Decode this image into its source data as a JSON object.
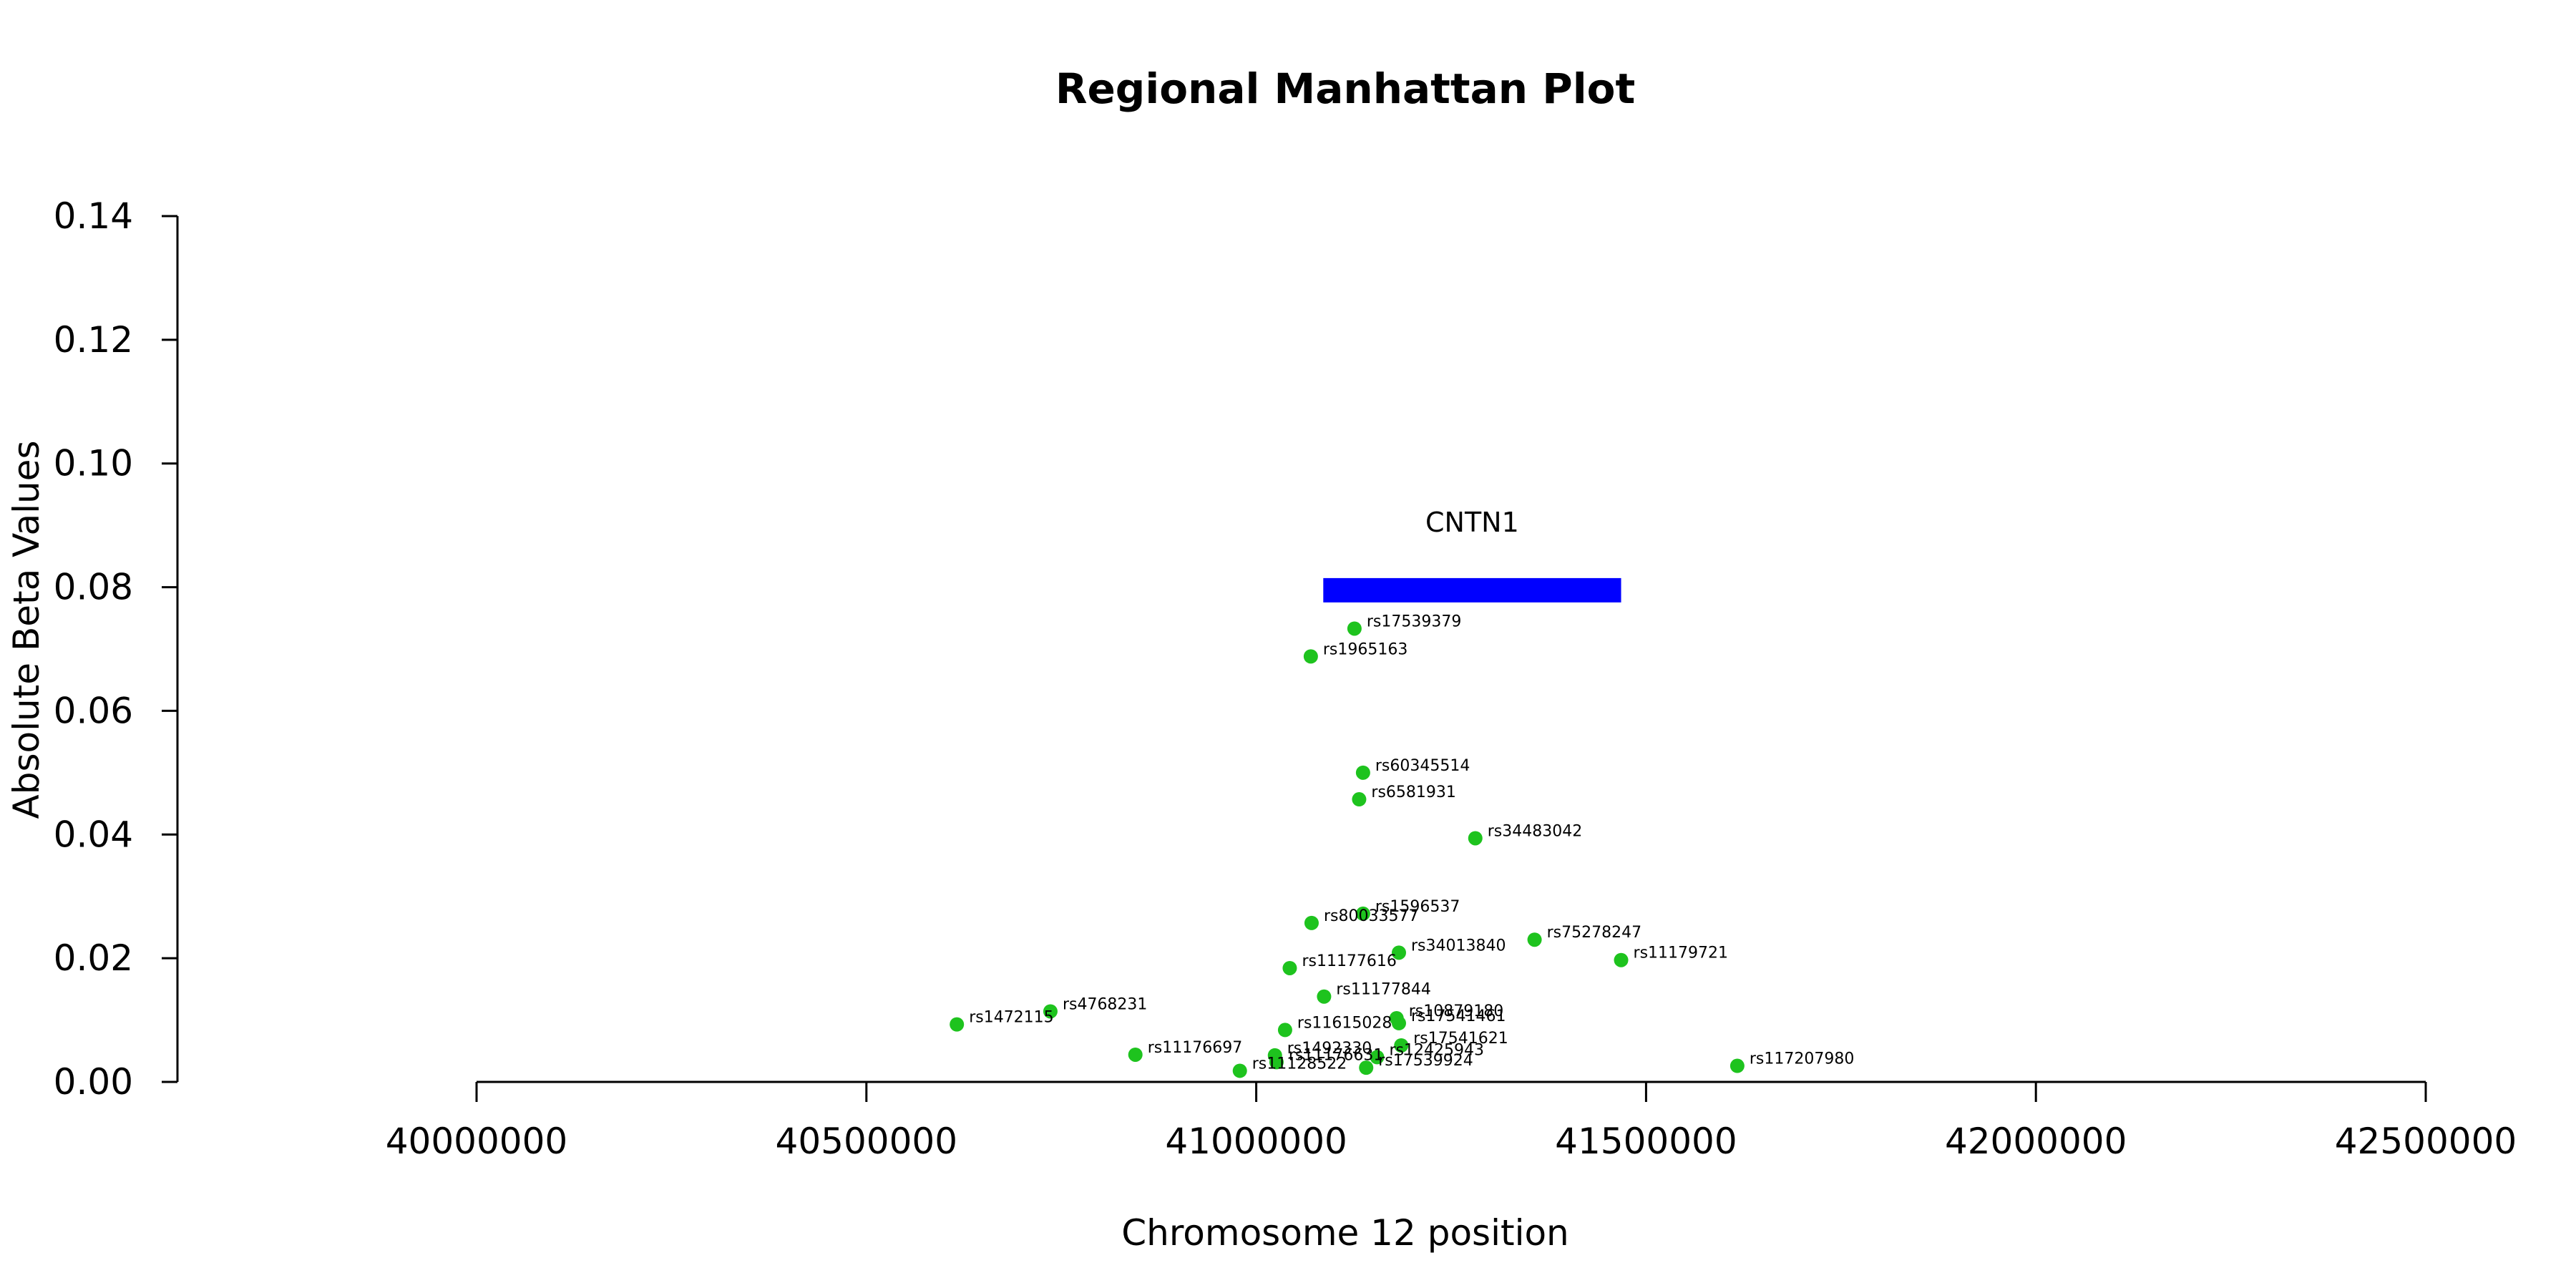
{
  "chart_data": {
    "type": "scatter",
    "title": "Regional Manhattan Plot",
    "xlabel": "Chromosome 12 position",
    "ylabel": "Absolute Beta Values",
    "xlim": [
      40000000,
      42500000
    ],
    "ylim": [
      0,
      0.14
    ],
    "xticks": [
      "40000000",
      "40500000",
      "41000000",
      "41500000",
      "42000000",
      "42500000"
    ],
    "yticks": [
      "0.00",
      "0.02",
      "0.04",
      "0.06",
      "0.08",
      "0.10",
      "0.12",
      "0.14"
    ],
    "point_color": "#1ec31e",
    "gene_color": "#0000ff",
    "gene": {
      "name": "CNTN1",
      "start": 41086000,
      "end": 41468000,
      "y": 0.0795
    },
    "points": [
      {
        "label": "rs17539379",
        "x": 41126000,
        "y": 0.0733
      },
      {
        "label": "rs1965163",
        "x": 41070000,
        "y": 0.0688
      },
      {
        "label": "rs60345514",
        "x": 41137000,
        "y": 0.05
      },
      {
        "label": "rs6581931",
        "x": 41132000,
        "y": 0.0457
      },
      {
        "label": "rs34483042",
        "x": 41281000,
        "y": 0.0394
      },
      {
        "label": "rs1596537",
        "x": 41137000,
        "y": 0.0272
      },
      {
        "label": "rs80033577",
        "x": 41071000,
        "y": 0.0257
      },
      {
        "label": "rs75278247",
        "x": 41357000,
        "y": 0.023
      },
      {
        "label": "rs34013840",
        "x": 41183000,
        "y": 0.0209
      },
      {
        "label": "rs11179721",
        "x": 41468000,
        "y": 0.0197
      },
      {
        "label": "rs11177616",
        "x": 41043000,
        "y": 0.0184
      },
      {
        "label": "rs11177844",
        "x": 41087000,
        "y": 0.0138
      },
      {
        "label": "rs4768231",
        "x": 40736000,
        "y": 0.0114
      },
      {
        "label": "rs10879180",
        "x": 41180000,
        "y": 0.0103
      },
      {
        "label": "rs17541461",
        "x": 41183000,
        "y": 0.0095
      },
      {
        "label": "rs1472115",
        "x": 40616000,
        "y": 0.0093
      },
      {
        "label": "rs11615028",
        "x": 41037000,
        "y": 0.0084
      },
      {
        "label": "rs17541621",
        "x": 41186000,
        "y": 0.0059
      },
      {
        "label": "rs11176697",
        "x": 40845000,
        "y": 0.0044
      },
      {
        "label": "rs1492330",
        "x": 41024000,
        "y": 0.0043
      },
      {
        "label": "rs12425943",
        "x": 41155000,
        "y": 0.004
      },
      {
        "label": "rs17539924",
        "x": 41141000,
        "y": 0.0023
      },
      {
        "label": "rs117207980",
        "x": 41617000,
        "y": 0.0026
      },
      {
        "label": "rs11128522",
        "x": 40979000,
        "y": 0.0018
      },
      {
        "label": "rs11176631",
        "x": 41026000,
        "y": 0.0032
      }
    ]
  }
}
